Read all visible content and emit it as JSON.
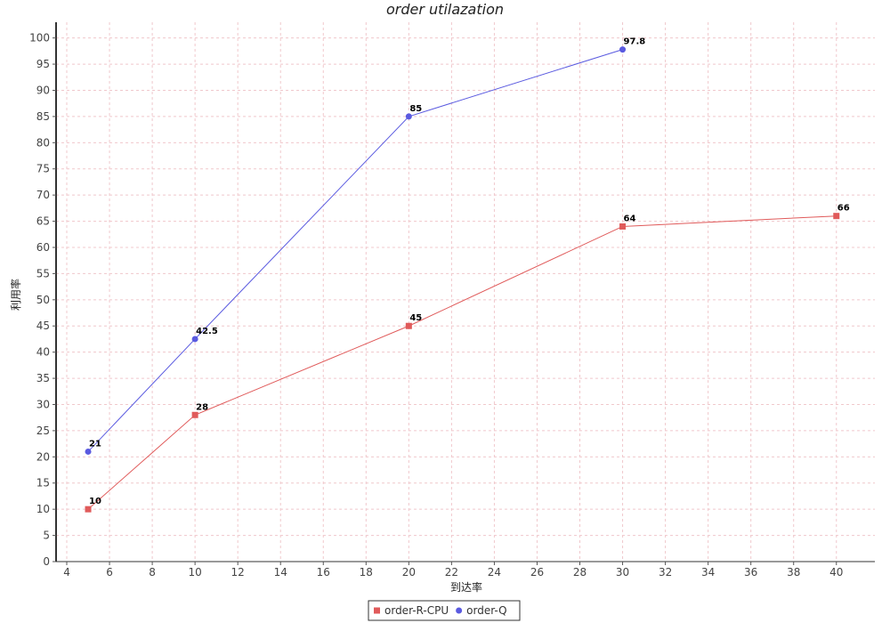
{
  "chart_data": {
    "type": "line",
    "title": "order utilazation",
    "xlabel": "到达率",
    "ylabel": "利用率",
    "xlim": [
      3.5,
      41.8
    ],
    "ylim": [
      0,
      103
    ],
    "xticks": [
      4,
      6,
      8,
      10,
      12,
      14,
      16,
      18,
      20,
      22,
      24,
      26,
      28,
      30,
      32,
      34,
      36,
      38,
      40
    ],
    "yticks": [
      0,
      5,
      10,
      15,
      20,
      25,
      30,
      35,
      40,
      45,
      50,
      55,
      60,
      65,
      70,
      75,
      80,
      85,
      90,
      95,
      100
    ],
    "grid": true,
    "legend_position": "bottom-center",
    "series": [
      {
        "name": "order-R-CPU",
        "color": "#e05a5a",
        "marker": "square",
        "x": [
          5,
          10,
          20,
          30,
          40
        ],
        "values": [
          10,
          28,
          45,
          64,
          66
        ],
        "labels": [
          "10",
          "28",
          "45",
          "64",
          "66"
        ]
      },
      {
        "name": "order-Q",
        "color": "#5a5ae0",
        "marker": "circle",
        "x": [
          5,
          10,
          20,
          30
        ],
        "values": [
          21,
          42.5,
          85,
          97.8
        ],
        "labels": [
          "21",
          "42.5",
          "85",
          "97.8"
        ]
      }
    ]
  }
}
